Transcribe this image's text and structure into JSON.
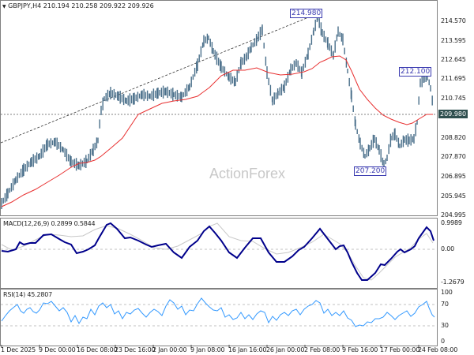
{
  "header": {
    "symbol_label": "GBPJPY,H4",
    "ohlc": "210.194 210.258 209.922 209.926"
  },
  "watermark": "ActionForex",
  "price_axis": [
    "214.570",
    "213.595",
    "212.645",
    "211.695",
    "210.745",
    "209.980",
    "208.820",
    "207.870",
    "206.895",
    "205.945",
    "204.995"
  ],
  "current_price": "209.980",
  "annotations": {
    "high_1": "214.980",
    "high_2": "212.100",
    "low_1": "207.200"
  },
  "macd": {
    "label": "MACD(12,26,9) 0.2899 0.5844",
    "axis": [
      "0.9989",
      "0.00",
      "-1.2679"
    ]
  },
  "rsi": {
    "label": "RSI(14) 45.2807",
    "axis": [
      "100",
      "70",
      "30",
      "0"
    ]
  },
  "time_axis": [
    "1 Dec 2025",
    "9 Dec 00:00",
    "16 Dec 08:00",
    "23 Dec 16:00",
    "2 Jan 00:00",
    "9 Jan 08:00",
    "16 Jan 16:00",
    "26 Jan 00:00",
    "2 Feb 08:00",
    "9 Feb 16:00",
    "17 Feb 00:00",
    "24 Feb 08:00"
  ],
  "colors": {
    "candle": "#4a6f8a",
    "ma": "#e83030",
    "macd": "#00008b",
    "signal": "#c0c0c0",
    "rsi": "#3399ff",
    "trendline": "#333333"
  },
  "chart_data": [
    {
      "type": "line",
      "title": "GBPJPY,H4",
      "subtitle": "210.194 210.258 209.922 209.926",
      "xlabel": "",
      "ylabel": "",
      "categories": [
        "1 Dec 2025",
        "9 Dec 00:00",
        "16 Dec 08:00",
        "23 Dec 16:00",
        "2 Jan 00:00",
        "9 Jan 08:00",
        "16 Jan 16:00",
        "26 Jan 00:00",
        "2 Feb 08:00",
        "9 Feb 16:00",
        "17 Feb 00:00",
        "24 Feb 08:00"
      ],
      "series": [
        {
          "name": "GBPJPY close (approx)",
          "values": [
            205.6,
            207.9,
            207.4,
            210.6,
            210.4,
            213.9,
            211.7,
            210.6,
            214.5,
            208.3,
            208.6,
            211.7
          ]
        },
        {
          "name": "Moving average (red)",
          "values": [
            205.3,
            206.6,
            207.6,
            209.1,
            210.2,
            211.2,
            211.9,
            211.8,
            212.7,
            210.6,
            209.5,
            209.9
          ]
        }
      ],
      "annotations": [
        "214.980",
        "212.100",
        "207.200",
        "current 209.980"
      ],
      "ylim": [
        204.995,
        215.5
      ],
      "grid": false
    },
    {
      "type": "line",
      "title": "MACD(12,26,9) 0.2899 0.5844",
      "categories": [
        "1 Dec 2025",
        "9 Dec 00:00",
        "16 Dec 08:00",
        "23 Dec 16:00",
        "2 Jan 00:00",
        "9 Jan 08:00",
        "16 Jan 16:00",
        "26 Jan 00:00",
        "2 Feb 08:00",
        "9 Feb 16:00",
        "17 Feb 00:00",
        "24 Feb 08:00"
      ],
      "series": [
        {
          "name": "MACD",
          "values": [
            -0.15,
            0.5,
            -0.05,
            0.95,
            0.3,
            0.85,
            0.2,
            -0.4,
            0.75,
            -1.2,
            -0.3,
            0.29
          ]
        },
        {
          "name": "Signal",
          "values": [
            0.0,
            0.35,
            0.1,
            0.8,
            0.35,
            0.7,
            0.3,
            -0.3,
            0.6,
            -0.9,
            -0.4,
            0.58
          ]
        }
      ],
      "ylim": [
        -1.2679,
        0.9989
      ]
    },
    {
      "type": "line",
      "title": "RSI(14) 45.2807",
      "categories": [
        "1 Dec 2025",
        "9 Dec 00:00",
        "16 Dec 08:00",
        "23 Dec 16:00",
        "2 Jan 00:00",
        "9 Jan 08:00",
        "16 Jan 16:00",
        "26 Jan 00:00",
        "2 Feb 08:00",
        "9 Feb 16:00",
        "17 Feb 00:00",
        "24 Feb 08:00"
      ],
      "series": [
        {
          "name": "RSI(14)",
          "values": [
            48,
            68,
            40,
            72,
            50,
            70,
            52,
            45,
            75,
            35,
            45,
            45.28
          ]
        }
      ],
      "ylim": [
        0,
        100
      ],
      "reference_lines": [
        70,
        30
      ]
    }
  ]
}
